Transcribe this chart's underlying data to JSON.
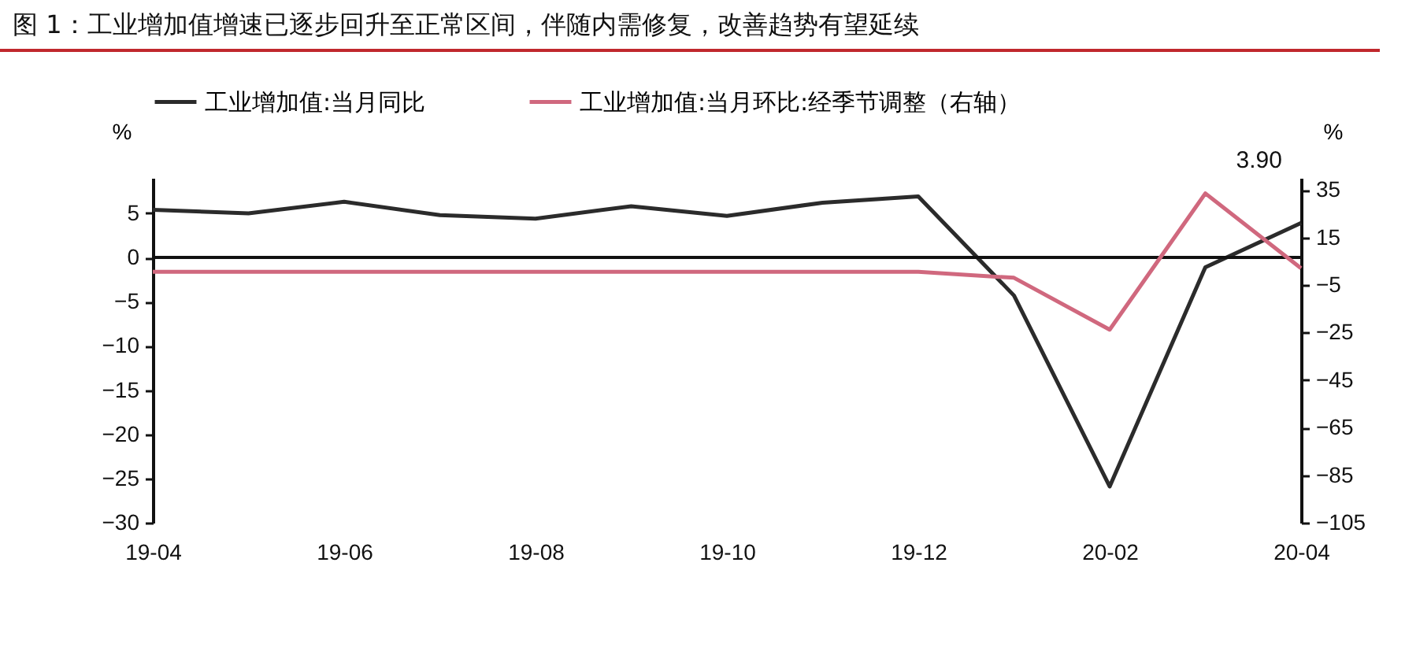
{
  "chart_data": {
    "type": "line",
    "title": "图 1：工业增加值增速已逐步回升至正常区间，伴随内需修复，改善趋势有望延续",
    "categories": [
      "19-04",
      null,
      "19-06",
      null,
      "19-08",
      null,
      "19-10",
      null,
      "19-12",
      null,
      "20-02",
      null,
      "20-04"
    ],
    "series": [
      {
        "name": "工业增加值:当月同比",
        "color": "#2b2b2b",
        "values": [
          5.4,
          5.0,
          6.3,
          4.8,
          4.4,
          5.8,
          4.7,
          6.2,
          6.9,
          -4.3,
          -25.9,
          -1.1,
          3.9
        ]
      },
      {
        "name": "工业增加值:当月环比:经季节调整（右轴）",
        "color": "#d0687e",
        "axis": "y2",
        "values": [
          0.5,
          0.5,
          0.5,
          0.5,
          0.5,
          0.5,
          0.5,
          0.5,
          0.5,
          -2.0,
          -23.8,
          33.5,
          2.0
        ]
      }
    ],
    "ylabel": "%",
    "y2label": "%",
    "ylim": [
      -30,
      9
    ],
    "yticks": [
      -30,
      -25,
      -20,
      -15,
      -10,
      -5,
      0,
      5
    ],
    "y2lim": [
      -105,
      40
    ],
    "y2ticks": [
      -105,
      -85,
      -65,
      -45,
      -25,
      -5,
      15,
      35
    ],
    "annotations": [
      {
        "text": "3.90",
        "x": "20-04",
        "y": 3.9
      }
    ],
    "ref_lines": [
      {
        "axis": "y",
        "value": 0,
        "color": "#111111"
      }
    ],
    "legend": "top",
    "grid": false
  }
}
